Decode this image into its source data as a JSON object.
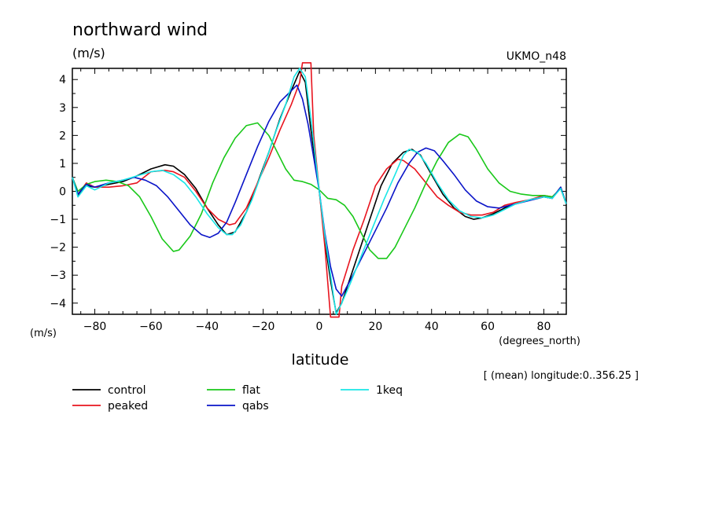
{
  "title": "northward wind",
  "units": "(m/s)",
  "dataset": "UKMO_n48",
  "y_axis_units": "(m/s)",
  "x_axis_units": "(degrees_north)",
  "xlabel": "latitude",
  "subset_note": "[ (mean) longitude:0..356.25 ]",
  "chart_data": {
    "type": "line",
    "title": "northward wind",
    "xlabel": "latitude",
    "ylabel": "(m/s)",
    "xlim": [
      -88,
      88
    ],
    "ylim": [
      -4.4,
      4.4
    ],
    "xticks": [
      -80,
      -60,
      -40,
      -20,
      0,
      20,
      40,
      60,
      80
    ],
    "yticks": [
      -4,
      -3,
      -2,
      -1,
      0,
      1,
      2,
      3,
      4
    ],
    "grid": false,
    "legend_position": "bottom",
    "series": [
      {
        "name": "control",
        "color": "#000000",
        "points": [
          [
            -88,
            0.5
          ],
          [
            -86,
            -0.15
          ],
          [
            -83,
            0.2
          ],
          [
            -80,
            0.15
          ],
          [
            -75,
            0.25
          ],
          [
            -70,
            0.35
          ],
          [
            -65,
            0.55
          ],
          [
            -60,
            0.8
          ],
          [
            -55,
            0.95
          ],
          [
            -52,
            0.9
          ],
          [
            -48,
            0.6
          ],
          [
            -44,
            0.1
          ],
          [
            -40,
            -0.6
          ],
          [
            -36,
            -1.2
          ],
          [
            -33,
            -1.55
          ],
          [
            -30,
            -1.45
          ],
          [
            -26,
            -0.75
          ],
          [
            -22,
            0.3
          ],
          [
            -18,
            1.4
          ],
          [
            -14,
            2.6
          ],
          [
            -10,
            3.6
          ],
          [
            -7,
            4.3
          ],
          [
            -5,
            3.9
          ],
          [
            -3,
            2.2
          ],
          [
            0,
            0.0
          ],
          [
            2,
            -1.8
          ],
          [
            4,
            -3.2
          ],
          [
            6,
            -4.35
          ],
          [
            8,
            -4.0
          ],
          [
            10,
            -3.4
          ],
          [
            14,
            -2.2
          ],
          [
            18,
            -1.0
          ],
          [
            22,
            0.2
          ],
          [
            26,
            1.0
          ],
          [
            30,
            1.4
          ],
          [
            33,
            1.5
          ],
          [
            36,
            1.3
          ],
          [
            40,
            0.6
          ],
          [
            44,
            -0.1
          ],
          [
            48,
            -0.6
          ],
          [
            52,
            -0.9
          ],
          [
            55,
            -1.0
          ],
          [
            58,
            -0.95
          ],
          [
            62,
            -0.8
          ],
          [
            66,
            -0.6
          ],
          [
            70,
            -0.45
          ],
          [
            75,
            -0.3
          ],
          [
            80,
            -0.2
          ],
          [
            83,
            -0.25
          ],
          [
            86,
            0.15
          ],
          [
            88,
            -0.45
          ]
        ]
      },
      {
        "name": "peaked",
        "color": "#e8141e",
        "points": [
          [
            -88,
            0.5
          ],
          [
            -86,
            -0.1
          ],
          [
            -83,
            0.3
          ],
          [
            -80,
            0.15
          ],
          [
            -75,
            0.15
          ],
          [
            -70,
            0.2
          ],
          [
            -65,
            0.3
          ],
          [
            -60,
            0.7
          ],
          [
            -55,
            0.75
          ],
          [
            -52,
            0.7
          ],
          [
            -48,
            0.5
          ],
          [
            -44,
            0.0
          ],
          [
            -40,
            -0.6
          ],
          [
            -36,
            -1.0
          ],
          [
            -32,
            -1.2
          ],
          [
            -30,
            -1.15
          ],
          [
            -26,
            -0.6
          ],
          [
            -22,
            0.3
          ],
          [
            -18,
            1.2
          ],
          [
            -14,
            2.2
          ],
          [
            -10,
            3.1
          ],
          [
            -7,
            3.9
          ],
          [
            -6,
            4.6
          ],
          [
            -3,
            4.6
          ],
          [
            -2,
            2.0
          ],
          [
            0,
            0.0
          ],
          [
            2,
            -2.0
          ],
          [
            4,
            -4.5
          ],
          [
            7,
            -4.5
          ],
          [
            8,
            -3.4
          ],
          [
            12,
            -2.1
          ],
          [
            16,
            -1.0
          ],
          [
            20,
            0.2
          ],
          [
            24,
            0.8
          ],
          [
            28,
            1.15
          ],
          [
            30,
            1.1
          ],
          [
            34,
            0.8
          ],
          [
            38,
            0.3
          ],
          [
            42,
            -0.2
          ],
          [
            46,
            -0.5
          ],
          [
            50,
            -0.75
          ],
          [
            54,
            -0.85
          ],
          [
            58,
            -0.85
          ],
          [
            62,
            -0.75
          ],
          [
            66,
            -0.5
          ],
          [
            70,
            -0.4
          ],
          [
            75,
            -0.3
          ],
          [
            80,
            -0.15
          ],
          [
            83,
            -0.2
          ],
          [
            86,
            0.1
          ],
          [
            88,
            -0.45
          ]
        ]
      },
      {
        "name": "flat",
        "color": "#19c819",
        "points": [
          [
            -88,
            0.5
          ],
          [
            -86,
            0.0
          ],
          [
            -83,
            0.25
          ],
          [
            -80,
            0.35
          ],
          [
            -76,
            0.4
          ],
          [
            -72,
            0.35
          ],
          [
            -68,
            0.2
          ],
          [
            -64,
            -0.2
          ],
          [
            -60,
            -0.9
          ],
          [
            -56,
            -1.7
          ],
          [
            -52,
            -2.15
          ],
          [
            -50,
            -2.1
          ],
          [
            -46,
            -1.6
          ],
          [
            -42,
            -0.8
          ],
          [
            -38,
            0.3
          ],
          [
            -34,
            1.2
          ],
          [
            -30,
            1.9
          ],
          [
            -26,
            2.35
          ],
          [
            -22,
            2.45
          ],
          [
            -18,
            2.0
          ],
          [
            -15,
            1.4
          ],
          [
            -12,
            0.8
          ],
          [
            -9,
            0.4
          ],
          [
            -6,
            0.35
          ],
          [
            -3,
            0.25
          ],
          [
            0,
            0.05
          ],
          [
            3,
            -0.25
          ],
          [
            6,
            -0.3
          ],
          [
            9,
            -0.5
          ],
          [
            12,
            -0.9
          ],
          [
            15,
            -1.5
          ],
          [
            18,
            -2.1
          ],
          [
            21,
            -2.4
          ],
          [
            24,
            -2.4
          ],
          [
            27,
            -2.0
          ],
          [
            30,
            -1.4
          ],
          [
            34,
            -0.6
          ],
          [
            38,
            0.3
          ],
          [
            42,
            1.1
          ],
          [
            46,
            1.75
          ],
          [
            50,
            2.05
          ],
          [
            53,
            1.95
          ],
          [
            56,
            1.5
          ],
          [
            60,
            0.8
          ],
          [
            64,
            0.3
          ],
          [
            68,
            0.0
          ],
          [
            72,
            -0.1
          ],
          [
            76,
            -0.15
          ],
          [
            80,
            -0.15
          ],
          [
            83,
            -0.2
          ],
          [
            86,
            0.1
          ],
          [
            88,
            -0.45
          ]
        ]
      },
      {
        "name": "qabs",
        "color": "#0a14c8",
        "points": [
          [
            -88,
            0.5
          ],
          [
            -86,
            -0.1
          ],
          [
            -83,
            0.25
          ],
          [
            -80,
            0.15
          ],
          [
            -75,
            0.3
          ],
          [
            -70,
            0.4
          ],
          [
            -66,
            0.5
          ],
          [
            -62,
            0.4
          ],
          [
            -58,
            0.2
          ],
          [
            -54,
            -0.2
          ],
          [
            -50,
            -0.7
          ],
          [
            -46,
            -1.2
          ],
          [
            -42,
            -1.55
          ],
          [
            -39,
            -1.65
          ],
          [
            -36,
            -1.5
          ],
          [
            -33,
            -1.1
          ],
          [
            -30,
            -0.4
          ],
          [
            -26,
            0.6
          ],
          [
            -22,
            1.6
          ],
          [
            -18,
            2.5
          ],
          [
            -14,
            3.2
          ],
          [
            -10,
            3.6
          ],
          [
            -8,
            3.8
          ],
          [
            -6,
            3.3
          ],
          [
            -4,
            2.4
          ],
          [
            -2,
            1.2
          ],
          [
            0,
            0.0
          ],
          [
            2,
            -1.5
          ],
          [
            4,
            -2.7
          ],
          [
            6,
            -3.5
          ],
          [
            8,
            -3.75
          ],
          [
            12,
            -3.0
          ],
          [
            16,
            -2.2
          ],
          [
            20,
            -1.4
          ],
          [
            24,
            -0.6
          ],
          [
            28,
            0.3
          ],
          [
            32,
            1.0
          ],
          [
            35,
            1.4
          ],
          [
            38,
            1.55
          ],
          [
            41,
            1.45
          ],
          [
            44,
            1.1
          ],
          [
            48,
            0.6
          ],
          [
            52,
            0.05
          ],
          [
            56,
            -0.35
          ],
          [
            60,
            -0.55
          ],
          [
            64,
            -0.6
          ],
          [
            68,
            -0.5
          ],
          [
            72,
            -0.4
          ],
          [
            76,
            -0.3
          ],
          [
            80,
            -0.2
          ],
          [
            83,
            -0.25
          ],
          [
            86,
            0.15
          ],
          [
            88,
            -0.45
          ]
        ]
      },
      {
        "name": "1keq",
        "color": "#19e6e6",
        "points": [
          [
            -88,
            0.5
          ],
          [
            -86,
            -0.2
          ],
          [
            -83,
            0.2
          ],
          [
            -80,
            0.05
          ],
          [
            -75,
            0.3
          ],
          [
            -70,
            0.4
          ],
          [
            -65,
            0.55
          ],
          [
            -60,
            0.7
          ],
          [
            -56,
            0.75
          ],
          [
            -52,
            0.6
          ],
          [
            -48,
            0.3
          ],
          [
            -44,
            -0.2
          ],
          [
            -40,
            -0.8
          ],
          [
            -36,
            -1.3
          ],
          [
            -33,
            -1.55
          ],
          [
            -31,
            -1.55
          ],
          [
            -28,
            -1.2
          ],
          [
            -24,
            -0.3
          ],
          [
            -20,
            0.8
          ],
          [
            -16,
            2.0
          ],
          [
            -12,
            3.1
          ],
          [
            -9,
            4.1
          ],
          [
            -7,
            4.4
          ],
          [
            -5,
            4.1
          ],
          [
            -3,
            2.6
          ],
          [
            0,
            0.0
          ],
          [
            2,
            -1.6
          ],
          [
            4,
            -3.0
          ],
          [
            6,
            -4.4
          ],
          [
            8,
            -4.0
          ],
          [
            11,
            -3.3
          ],
          [
            15,
            -2.3
          ],
          [
            19,
            -1.3
          ],
          [
            23,
            -0.3
          ],
          [
            27,
            0.6
          ],
          [
            30,
            1.3
          ],
          [
            32,
            1.5
          ],
          [
            35,
            1.4
          ],
          [
            38,
            1.0
          ],
          [
            42,
            0.3
          ],
          [
            46,
            -0.3
          ],
          [
            50,
            -0.7
          ],
          [
            54,
            -0.9
          ],
          [
            58,
            -0.95
          ],
          [
            62,
            -0.85
          ],
          [
            66,
            -0.65
          ],
          [
            70,
            -0.45
          ],
          [
            75,
            -0.3
          ],
          [
            80,
            -0.2
          ],
          [
            83,
            -0.25
          ],
          [
            86,
            0.1
          ],
          [
            88,
            -0.45
          ]
        ]
      }
    ]
  }
}
